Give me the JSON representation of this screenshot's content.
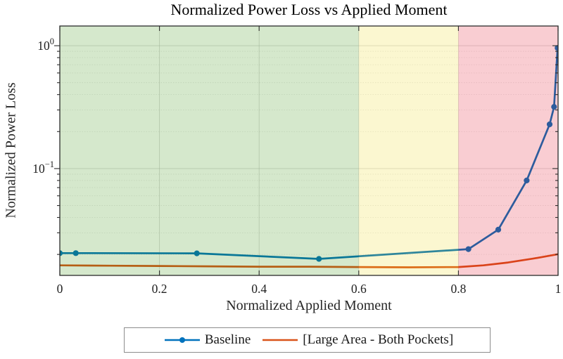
{
  "chart_data": {
    "type": "line",
    "title": "Normalized Power Loss vs Applied Moment",
    "xlabel": "Normalized Applied Moment",
    "ylabel": "Normalized Power Loss",
    "x_scale": "linear",
    "y_scale": "log",
    "xlim": [
      0,
      1
    ],
    "ylim": [
      0.0135,
      1.447
    ],
    "grid": true,
    "x_ticks": {
      "values": [
        0,
        0.2,
        0.4,
        0.6,
        0.8,
        1
      ],
      "labels": [
        "0",
        "0.2",
        "0.4",
        "0.6",
        "0.8",
        "1"
      ]
    },
    "y_ticks": [
      {
        "value": 1,
        "base": "10",
        "exp": "0"
      },
      {
        "value": 0.1,
        "base": "10",
        "exp": "−1"
      }
    ],
    "y_minor_tick_values": [
      0.02,
      0.03,
      0.04,
      0.05,
      0.06,
      0.07,
      0.08,
      0.09,
      0.2,
      0.3,
      0.4,
      0.5,
      0.6,
      0.7,
      0.8,
      0.9
    ],
    "regions": [
      {
        "name": "green-zone",
        "from": 0,
        "to": 0.6,
        "color": "#2D8C00",
        "opacity": 0.2
      },
      {
        "name": "yellow-zone",
        "from": 0.6,
        "to": 0.8,
        "color": "#EBD714",
        "opacity": 0.2
      },
      {
        "name": "red-zone",
        "from": 0.8,
        "to": 1.0,
        "color": "#E1051E",
        "opacity": 0.2
      }
    ],
    "series": [
      {
        "name": "Baseline",
        "color": "#0072BD",
        "marker": "circle",
        "x": [
          0,
          0.032,
          0.275,
          0.52,
          0.82,
          0.88,
          0.937,
          0.983,
          0.992,
          0.999
        ],
        "y": [
          0.0205,
          0.0205,
          0.0204,
          0.0184,
          0.0221,
          0.0318,
          0.08,
          0.229,
          0.318,
          0.96
        ]
      },
      {
        "name": "[Large Area - Both Pockets]",
        "color": "#D95319",
        "marker": "none",
        "x": [
          0,
          0.1,
          0.2,
          0.3,
          0.4,
          0.5,
          0.6,
          0.7,
          0.8,
          0.85,
          0.9,
          0.95,
          1.0
        ],
        "y": [
          0.0163,
          0.0162,
          0.0161,
          0.016,
          0.0159,
          0.0159,
          0.0158,
          0.0157,
          0.0158,
          0.0163,
          0.0172,
          0.0185,
          0.0201
        ]
      }
    ],
    "legend": {
      "position": "below",
      "entries": [
        "Baseline",
        "[Large Area - Both Pockets]"
      ]
    }
  },
  "style_colors": {
    "axis": "#2b2b2b",
    "tick_label": "#1f1f1f",
    "grid_major": "#b8b8b8",
    "grid_minor": "#cfcfcf"
  }
}
